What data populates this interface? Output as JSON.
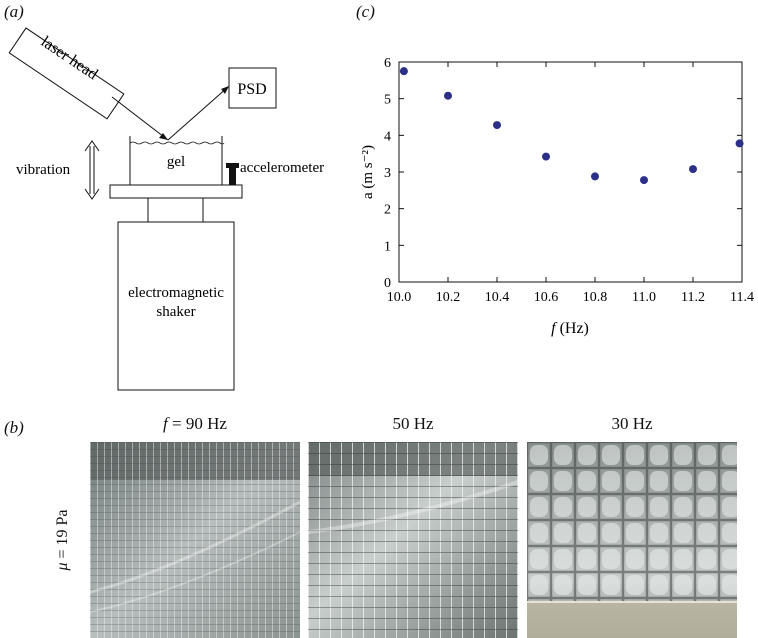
{
  "panel_a": {
    "label": "(a)",
    "laser_head": "laser head",
    "psd": "PSD",
    "gel": "gel",
    "vibration": "vibration",
    "accelerometer": "accelerometer",
    "shaker_line1": "electromagnetic",
    "shaker_line2": "shaker"
  },
  "panel_c": {
    "label": "(c)"
  },
  "chart_data": {
    "type": "scatter",
    "xlabel_italic": "f",
    "xlabel_rest": " (Hz)",
    "ylabel": "a (m s⁻²)",
    "xlim": [
      10.0,
      11.4
    ],
    "ylim": [
      0,
      6
    ],
    "xticks": [
      "10.0",
      "10.2",
      "10.4",
      "10.6",
      "10.8",
      "11.0",
      "11.2",
      "11.4"
    ],
    "yticks": [
      "0",
      "1",
      "2",
      "3",
      "4",
      "5",
      "6"
    ],
    "x": [
      10.02,
      10.2,
      10.4,
      10.6,
      10.8,
      11.0,
      11.2,
      11.39
    ],
    "y": [
      5.75,
      5.08,
      4.28,
      3.42,
      2.88,
      2.78,
      3.08,
      3.78
    ],
    "marker_color": "#2b2f87",
    "grid": false
  },
  "panel_b": {
    "label": "(b)",
    "row_label_mu": "μ",
    "row_label_rest": " = 19 Pa",
    "col1_f": "f",
    "col1_rest": " = 90 Hz",
    "col2": "50 Hz",
    "col3": "30 Hz"
  }
}
